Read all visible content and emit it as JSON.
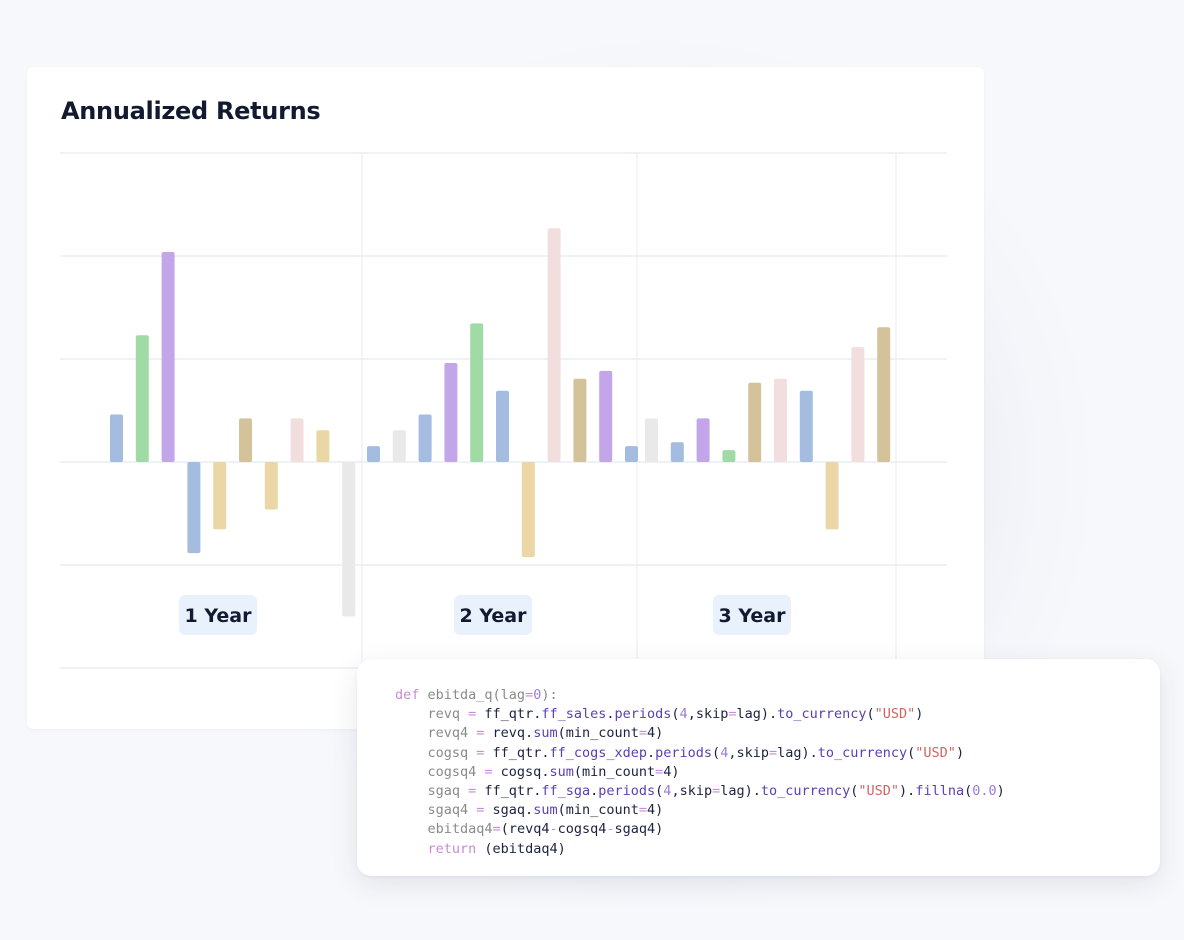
{
  "chart_data": {
    "type": "bar",
    "title": "Annualized Returns",
    "groups": [
      "1 Year",
      "2 Year",
      "3 Year"
    ],
    "grid": true,
    "ylim": [
      -4,
      6
    ],
    "series_by_group": [
      {
        "group": "1 Year",
        "bars": [
          {
            "value": 1.2,
            "color": "#a4bce0"
          },
          {
            "value": 3.2,
            "color": "#a0dba6"
          },
          {
            "value": 5.3,
            "color": "#c3a6e9"
          },
          {
            "value": -2.3,
            "color": "#a4bce0"
          },
          {
            "value": -1.7,
            "color": "#ead7a5"
          },
          {
            "value": 1.1,
            "color": "#d4c29a"
          },
          {
            "value": -1.2,
            "color": "#ead7a5"
          },
          {
            "value": 1.1,
            "color": "#f3dedf"
          },
          {
            "value": 0.8,
            "color": "#ead7a5"
          },
          {
            "value": -3.9,
            "color": "#e9e9e9"
          }
        ]
      },
      {
        "group": "2 Year",
        "bars": [
          {
            "value": 0.4,
            "color": "#a4bce0"
          },
          {
            "value": 0.8,
            "color": "#e9e9e9"
          },
          {
            "value": 1.2,
            "color": "#a4bce0"
          },
          {
            "value": 2.5,
            "color": "#c3a6e9"
          },
          {
            "value": 3.5,
            "color": "#a0dba6"
          },
          {
            "value": 1.8,
            "color": "#a4bce0"
          },
          {
            "value": -2.4,
            "color": "#ead7a5"
          },
          {
            "value": 5.9,
            "color": "#f3dedf"
          },
          {
            "value": 2.1,
            "color": "#d4c29a"
          },
          {
            "value": 2.3,
            "color": "#c3a6e9"
          },
          {
            "value": 0.4,
            "color": "#a4bce0"
          }
        ]
      },
      {
        "group": "3 Year",
        "bars": [
          {
            "value": 1.1,
            "color": "#e9e9e9"
          },
          {
            "value": 0.5,
            "color": "#a4bce0"
          },
          {
            "value": 1.1,
            "color": "#c3a6e9"
          },
          {
            "value": 0.3,
            "color": "#a0dba6"
          },
          {
            "value": 2.0,
            "color": "#d4c29a"
          },
          {
            "value": 2.1,
            "color": "#f3dedf"
          },
          {
            "value": 1.8,
            "color": "#a4bce0"
          },
          {
            "value": -1.7,
            "color": "#ead7a5"
          },
          {
            "value": 2.9,
            "color": "#f3dedf"
          },
          {
            "value": 3.4,
            "color": "#d4c29a"
          }
        ]
      }
    ]
  },
  "code": {
    "lines": [
      [
        {
          "t": "def ",
          "c": "kw"
        },
        {
          "t": "ebitda_q(lag",
          "c": "name"
        },
        {
          "t": "=",
          "c": "op"
        },
        {
          "t": "0",
          "c": "num"
        },
        {
          "t": "):",
          "c": "name"
        }
      ],
      [
        {
          "t": "    revq ",
          "c": "name"
        },
        {
          "t": "=",
          "c": "op"
        },
        {
          "t": " ff_qtr.",
          "c": "txt"
        },
        {
          "t": "ff_sales",
          "c": "meth"
        },
        {
          "t": ".",
          "c": "txt"
        },
        {
          "t": "periods",
          "c": "meth"
        },
        {
          "t": "(",
          "c": "txt"
        },
        {
          "t": "4",
          "c": "num"
        },
        {
          "t": ",skip",
          "c": "txt"
        },
        {
          "t": "=",
          "c": "op"
        },
        {
          "t": "lag).",
          "c": "txt"
        },
        {
          "t": "to_currency",
          "c": "meth"
        },
        {
          "t": "(",
          "c": "txt"
        },
        {
          "t": "\"USD\"",
          "c": "str"
        },
        {
          "t": ")",
          "c": "txt"
        }
      ],
      [
        {
          "t": "    revq4 ",
          "c": "name"
        },
        {
          "t": "=",
          "c": "op"
        },
        {
          "t": " revq.",
          "c": "txt"
        },
        {
          "t": "sum",
          "c": "meth"
        },
        {
          "t": "(min_count",
          "c": "txt"
        },
        {
          "t": "=",
          "c": "op"
        },
        {
          "t": "4)",
          "c": "txt"
        }
      ],
      [
        {
          "t": "    cogsq ",
          "c": "name"
        },
        {
          "t": "=",
          "c": "op"
        },
        {
          "t": " ff_qtr.",
          "c": "txt"
        },
        {
          "t": "ff_cogs_xdep",
          "c": "meth"
        },
        {
          "t": ".",
          "c": "txt"
        },
        {
          "t": "periods",
          "c": "meth"
        },
        {
          "t": "(",
          "c": "txt"
        },
        {
          "t": "4",
          "c": "num"
        },
        {
          "t": ",skip",
          "c": "txt"
        },
        {
          "t": "=",
          "c": "op"
        },
        {
          "t": "lag).",
          "c": "txt"
        },
        {
          "t": "to_currency",
          "c": "meth"
        },
        {
          "t": "(",
          "c": "txt"
        },
        {
          "t": "\"USD\"",
          "c": "str"
        },
        {
          "t": ")",
          "c": "txt"
        }
      ],
      [
        {
          "t": "    cogsq4 ",
          "c": "name"
        },
        {
          "t": "=",
          "c": "op"
        },
        {
          "t": " cogsq.",
          "c": "txt"
        },
        {
          "t": "sum",
          "c": "meth"
        },
        {
          "t": "(min_count",
          "c": "txt"
        },
        {
          "t": "=",
          "c": "op"
        },
        {
          "t": "4)",
          "c": "txt"
        }
      ],
      [
        {
          "t": "    sgaq ",
          "c": "name"
        },
        {
          "t": "=",
          "c": "op"
        },
        {
          "t": " ff_qtr.",
          "c": "txt"
        },
        {
          "t": "ff_sga",
          "c": "meth"
        },
        {
          "t": ".",
          "c": "txt"
        },
        {
          "t": "periods",
          "c": "meth"
        },
        {
          "t": "(",
          "c": "txt"
        },
        {
          "t": "4",
          "c": "num"
        },
        {
          "t": ",skip",
          "c": "txt"
        },
        {
          "t": "=",
          "c": "op"
        },
        {
          "t": "lag).",
          "c": "txt"
        },
        {
          "t": "to_currency",
          "c": "meth"
        },
        {
          "t": "(",
          "c": "txt"
        },
        {
          "t": "\"USD\"",
          "c": "str"
        },
        {
          "t": ").",
          "c": "txt"
        },
        {
          "t": "fillna",
          "c": "meth"
        },
        {
          "t": "(",
          "c": "txt"
        },
        {
          "t": "0.0",
          "c": "num"
        },
        {
          "t": ")",
          "c": "txt"
        }
      ],
      [
        {
          "t": "    sgaq4 ",
          "c": "name"
        },
        {
          "t": "=",
          "c": "op"
        },
        {
          "t": " sgaq.",
          "c": "txt"
        },
        {
          "t": "sum",
          "c": "meth"
        },
        {
          "t": "(min_count",
          "c": "txt"
        },
        {
          "t": "=",
          "c": "op"
        },
        {
          "t": "4)",
          "c": "txt"
        }
      ],
      [
        {
          "t": "    ebitdaq4",
          "c": "name"
        },
        {
          "t": "=",
          "c": "op"
        },
        {
          "t": "(revq4",
          "c": "txt"
        },
        {
          "t": "-",
          "c": "op"
        },
        {
          "t": "cogsq4",
          "c": "txt"
        },
        {
          "t": "-",
          "c": "op"
        },
        {
          "t": "sgaq4)",
          "c": "txt"
        }
      ],
      [
        {
          "t": "    ",
          "c": "txt"
        },
        {
          "t": "return",
          "c": "kw"
        },
        {
          "t": " (ebitdaq4)",
          "c": "txt"
        }
      ]
    ]
  }
}
